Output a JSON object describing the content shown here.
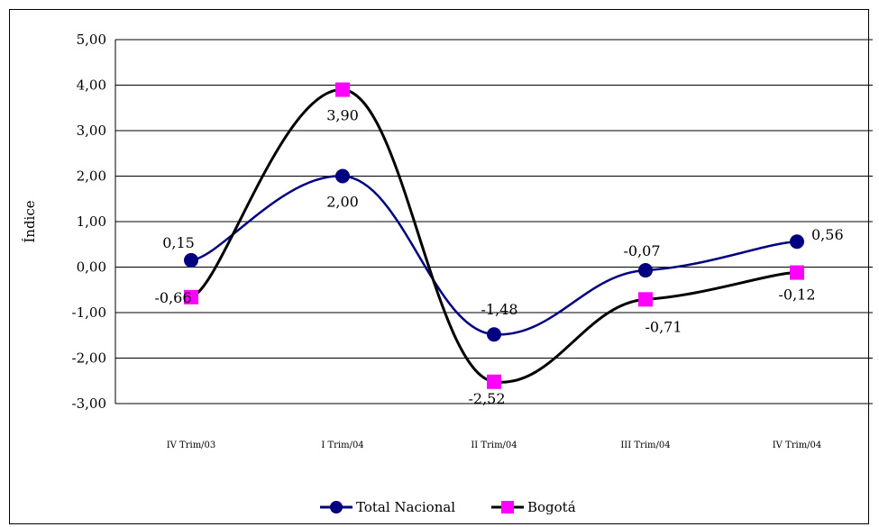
{
  "chart_data": {
    "type": "line",
    "title": "",
    "xlabel": "",
    "ylabel": "Índice",
    "categories": [
      "IV Trim/03",
      "I Trim/04",
      "II Trim/04",
      "III Trim/04",
      "IV Trim/04"
    ],
    "ylim": [
      -3,
      5
    ],
    "y_ticks": [
      "-3,00",
      "-2,00",
      "-1,00",
      "0,00",
      "1,00",
      "2,00",
      "3,00",
      "4,00",
      "5,00"
    ],
    "grid": true,
    "smooth": true,
    "legend_position": "bottom",
    "series": [
      {
        "name": "Total Nacional",
        "values": [
          0.15,
          2.0,
          -1.48,
          -0.07,
          0.56
        ],
        "labels": [
          "0,15",
          "2,00",
          "-1,48",
          "-0,07",
          "0,56"
        ],
        "color": "#000080",
        "marker": "circle"
      },
      {
        "name": "Bogotá",
        "values": [
          -0.66,
          3.9,
          -2.52,
          -0.71,
          -0.12
        ],
        "labels": [
          "-0,66",
          "3,90",
          "-2,52",
          "-0,71",
          "-0,12"
        ],
        "color": "#000000",
        "marker": "square",
        "marker_color": "#FF00FF"
      }
    ]
  }
}
